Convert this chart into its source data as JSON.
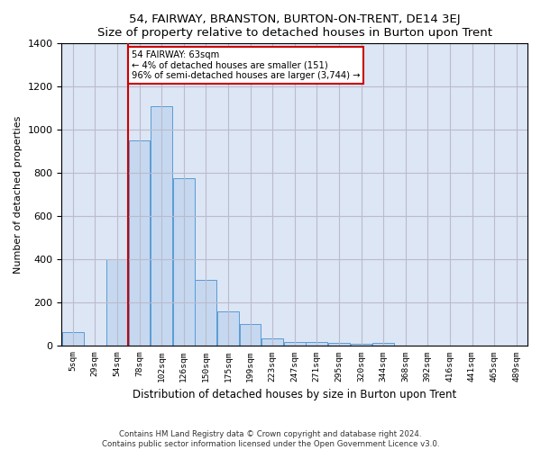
{
  "title": "54, FAIRWAY, BRANSTON, BURTON-ON-TRENT, DE14 3EJ",
  "subtitle": "Size of property relative to detached houses in Burton upon Trent",
  "xlabel": "Distribution of detached houses by size in Burton upon Trent",
  "ylabel": "Number of detached properties",
  "footnote1": "Contains HM Land Registry data © Crown copyright and database right 2024.",
  "footnote2": "Contains public sector information licensed under the Open Government Licence v3.0.",
  "annotation_title": "54 FAIRWAY: 63sqm",
  "annotation_line1": "← 4% of detached houses are smaller (151)",
  "annotation_line2": "96% of semi-detached houses are larger (3,744) →",
  "bar_color": "#c5d8f0",
  "bar_edge_color": "#5b9bd5",
  "red_line_color": "#cc0000",
  "annotation_box_color": "#cc0000",
  "plot_bg_color": "#dce6f5",
  "background_color": "#ffffff",
  "grid_color": "#bbbbcc",
  "categories": [
    "5sqm",
    "29sqm",
    "54sqm",
    "78sqm",
    "102sqm",
    "126sqm",
    "150sqm",
    "175sqm",
    "199sqm",
    "223sqm",
    "247sqm",
    "271sqm",
    "295sqm",
    "320sqm",
    "344sqm",
    "368sqm",
    "392sqm",
    "416sqm",
    "441sqm",
    "465sqm",
    "489sqm"
  ],
  "values": [
    65,
    2,
    400,
    950,
    1110,
    775,
    305,
    160,
    100,
    35,
    18,
    18,
    15,
    10,
    15,
    2,
    2,
    0,
    0,
    0,
    0
  ],
  "red_line_bin_index": 2,
  "ylim": [
    0,
    1400
  ],
  "yticks": [
    0,
    200,
    400,
    600,
    800,
    1000,
    1200,
    1400
  ]
}
